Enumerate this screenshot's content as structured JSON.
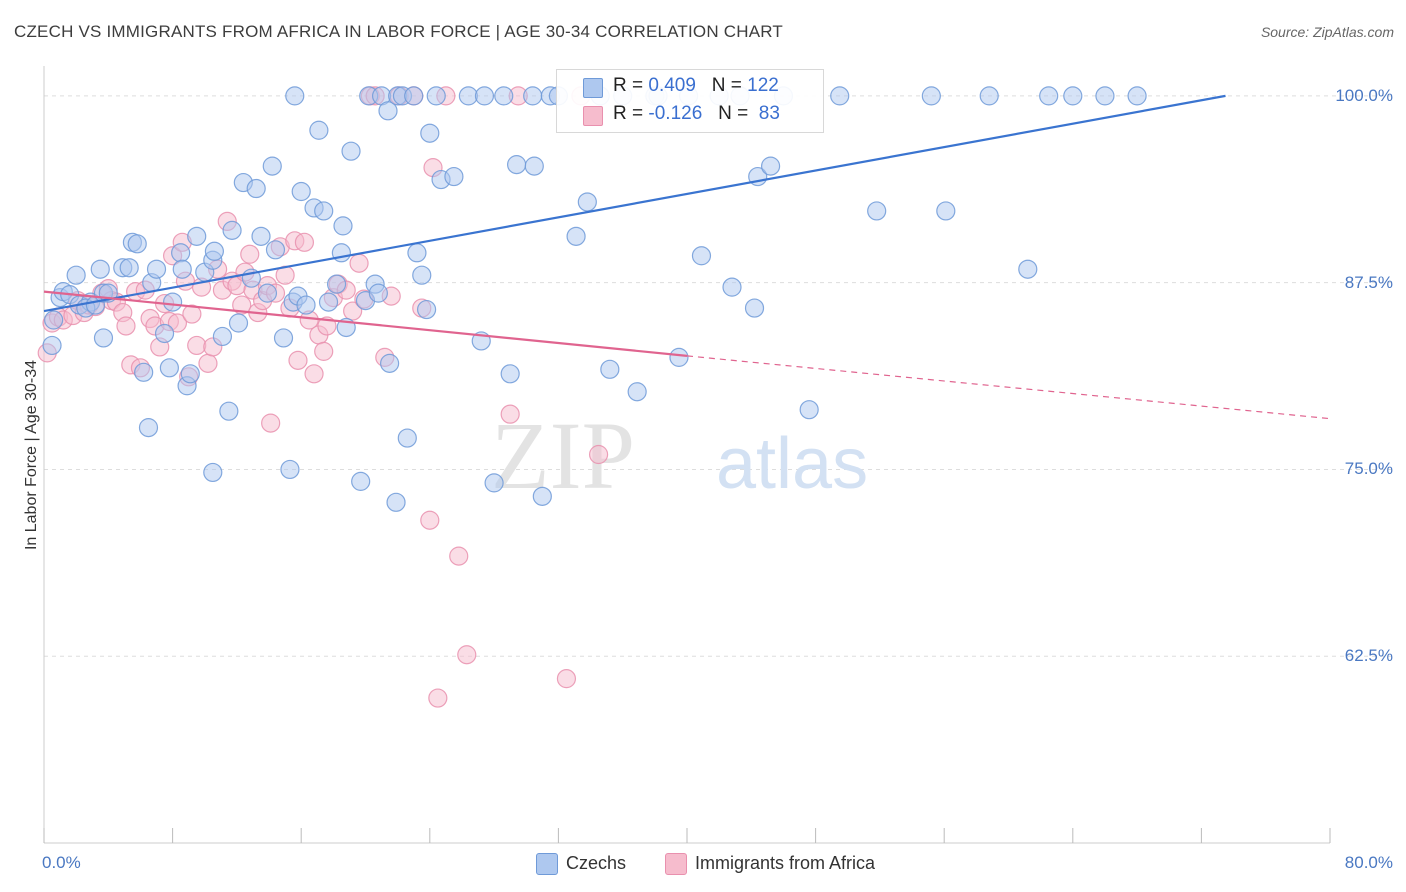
{
  "title": "CZECH VS IMMIGRANTS FROM AFRICA IN LABOR FORCE | AGE 30-34 CORRELATION CHART",
  "source": "Source: ZipAtlas.com",
  "watermark": {
    "zip": "ZIP",
    "atlas": "atlas"
  },
  "colors": {
    "blue": "#3a74d0",
    "blue_fill": "#aec8ef",
    "blue_stroke": "#6f9ad8",
    "pink": "#e0648f",
    "pink_fill": "#f6bccd",
    "pink_stroke": "#e990ae",
    "tick_text": "#4a78c2",
    "grid": "#dddddd"
  },
  "stats": [
    {
      "r_label": "R =",
      "r_value": "0.409",
      "n_label": "N =",
      "n_value": "122"
    },
    {
      "r_label": "R =",
      "r_value": "-0.126",
      "n_label": "N =",
      "n_value": "83"
    }
  ],
  "legend": [
    {
      "label": "Czechs"
    },
    {
      "label": "Immigrants from Africa"
    }
  ],
  "chart_data": {
    "type": "scatter",
    "title": "CZECH VS IMMIGRANTS FROM AFRICA IN LABOR FORCE | AGE 30-34 CORRELATION CHART",
    "xlabel": "",
    "ylabel": "In Labor Force | Age 30-34",
    "xlim": [
      0,
      80
    ],
    "ylim": [
      50,
      102
    ],
    "x_tick_labels": [
      "0.0%",
      "80.0%"
    ],
    "y_ticks": [
      62.5,
      75.0,
      87.5,
      100.0
    ],
    "y_tick_labels": [
      "62.5%",
      "75.0%",
      "87.5%",
      "100.0%"
    ],
    "grid": true,
    "legend_position": "bottom",
    "series": [
      {
        "name": "Czechs",
        "color": "#3a74d0",
        "r": 0.409,
        "n": 122,
        "trend": {
          "x0": 0.0,
          "y0": 85.6,
          "x1": 73.5,
          "y1": 100.0,
          "dashed_to": null
        },
        "points": [
          [
            0.5,
            83.3
          ],
          [
            0.6,
            85.0
          ],
          [
            1.0,
            86.5
          ],
          [
            1.2,
            86.9
          ],
          [
            1.6,
            86.7
          ],
          [
            2.0,
            88.0
          ],
          [
            2.2,
            86.0
          ],
          [
            2.9,
            86.2
          ],
          [
            2.6,
            85.8
          ],
          [
            3.2,
            86.0
          ],
          [
            3.7,
            83.8
          ],
          [
            3.7,
            86.8
          ],
          [
            4.0,
            86.8
          ],
          [
            3.5,
            88.4
          ],
          [
            4.9,
            88.5
          ],
          [
            5.3,
            88.5
          ],
          [
            5.5,
            90.2
          ],
          [
            5.8,
            90.1
          ],
          [
            6.2,
            81.5
          ],
          [
            6.5,
            77.8
          ],
          [
            6.7,
            87.5
          ],
          [
            7.0,
            88.4
          ],
          [
            7.5,
            84.1
          ],
          [
            7.8,
            81.8
          ],
          [
            8.0,
            86.2
          ],
          [
            8.5,
            89.5
          ],
          [
            8.6,
            88.4
          ],
          [
            8.9,
            80.6
          ],
          [
            9.1,
            81.4
          ],
          [
            9.5,
            90.6
          ],
          [
            10.0,
            88.2
          ],
          [
            10.5,
            74.8
          ],
          [
            10.5,
            89.0
          ],
          [
            10.6,
            89.6
          ],
          [
            11.1,
            83.9
          ],
          [
            11.5,
            78.9
          ],
          [
            11.7,
            91.0
          ],
          [
            12.1,
            84.8
          ],
          [
            12.4,
            94.2
          ],
          [
            12.9,
            87.8
          ],
          [
            13.2,
            93.8
          ],
          [
            13.5,
            90.6
          ],
          [
            13.9,
            86.8
          ],
          [
            14.2,
            95.3
          ],
          [
            14.4,
            89.7
          ],
          [
            14.9,
            83.8
          ],
          [
            15.3,
            75.0
          ],
          [
            15.5,
            86.2
          ],
          [
            15.6,
            100.0
          ],
          [
            15.8,
            86.6
          ],
          [
            16.0,
            93.6
          ],
          [
            16.3,
            86.0
          ],
          [
            16.8,
            92.5
          ],
          [
            17.1,
            97.7
          ],
          [
            17.4,
            92.3
          ],
          [
            17.7,
            86.2
          ],
          [
            18.2,
            87.4
          ],
          [
            18.5,
            89.5
          ],
          [
            18.6,
            91.3
          ],
          [
            18.8,
            84.5
          ],
          [
            19.1,
            96.3
          ],
          [
            19.7,
            74.2
          ],
          [
            20.0,
            86.3
          ],
          [
            20.2,
            100.0
          ],
          [
            20.6,
            87.4
          ],
          [
            20.8,
            86.8
          ],
          [
            21.0,
            100.0
          ],
          [
            21.4,
            99.0
          ],
          [
            21.5,
            82.1
          ],
          [
            21.9,
            72.8
          ],
          [
            22.0,
            100.0
          ],
          [
            22.3,
            100.0
          ],
          [
            22.6,
            77.1
          ],
          [
            23.0,
            100.0
          ],
          [
            23.2,
            89.5
          ],
          [
            23.5,
            88.0
          ],
          [
            23.8,
            85.7
          ],
          [
            24.0,
            97.5
          ],
          [
            24.4,
            100.0
          ],
          [
            24.7,
            94.4
          ],
          [
            25.5,
            94.6
          ],
          [
            26.4,
            100.0
          ],
          [
            27.2,
            83.6
          ],
          [
            27.4,
            100.0
          ],
          [
            28.0,
            74.1
          ],
          [
            28.6,
            100.0
          ],
          [
            29.0,
            81.4
          ],
          [
            29.4,
            95.4
          ],
          [
            30.4,
            100.0
          ],
          [
            30.5,
            95.3
          ],
          [
            31.0,
            73.2
          ],
          [
            31.5,
            100.0
          ],
          [
            32.0,
            100.0
          ],
          [
            33.1,
            90.6
          ],
          [
            33.8,
            92.9
          ],
          [
            34.6,
            100.0
          ],
          [
            35.2,
            81.7
          ],
          [
            36.0,
            100.0
          ],
          [
            36.9,
            80.2
          ],
          [
            38.0,
            100.0
          ],
          [
            38.2,
            100.0
          ],
          [
            39.5,
            82.5
          ],
          [
            40.1,
            100.0
          ],
          [
            40.9,
            89.3
          ],
          [
            42.0,
            100.0
          ],
          [
            42.8,
            87.2
          ],
          [
            43.3,
            100.0
          ],
          [
            44.2,
            85.8
          ],
          [
            44.4,
            94.6
          ],
          [
            45.2,
            95.3
          ],
          [
            46.0,
            100.0
          ],
          [
            47.6,
            79.0
          ],
          [
            49.5,
            100.0
          ],
          [
            51.8,
            92.3
          ],
          [
            55.2,
            100.0
          ],
          [
            56.1,
            92.3
          ],
          [
            58.8,
            100.0
          ],
          [
            61.2,
            88.4
          ],
          [
            62.5,
            100.0
          ],
          [
            64.0,
            100.0
          ],
          [
            66.0,
            100.0
          ],
          [
            68.0,
            100.0
          ]
        ]
      },
      {
        "name": "Immigrants from Africa",
        "color": "#e0648f",
        "r": -0.126,
        "n": 83,
        "trend": {
          "x0": 0.0,
          "y0": 86.9,
          "x1": 40.0,
          "y1": 82.6,
          "dashed_to": {
            "x": 80.0,
            "y": 78.4
          }
        },
        "points": [
          [
            0.2,
            82.8
          ],
          [
            0.5,
            84.8
          ],
          [
            0.9,
            85.2
          ],
          [
            1.2,
            85.0
          ],
          [
            1.8,
            85.3
          ],
          [
            2.1,
            86.3
          ],
          [
            2.5,
            85.5
          ],
          [
            2.8,
            86.0
          ],
          [
            3.2,
            85.9
          ],
          [
            3.6,
            86.8
          ],
          [
            4.0,
            87.1
          ],
          [
            4.2,
            86.3
          ],
          [
            4.5,
            86.2
          ],
          [
            4.9,
            85.5
          ],
          [
            5.1,
            84.6
          ],
          [
            5.4,
            82.0
          ],
          [
            5.7,
            86.9
          ],
          [
            6.0,
            81.8
          ],
          [
            6.3,
            87.0
          ],
          [
            6.6,
            85.1
          ],
          [
            6.9,
            84.6
          ],
          [
            7.2,
            83.2
          ],
          [
            7.5,
            86.1
          ],
          [
            7.8,
            84.9
          ],
          [
            8.0,
            89.3
          ],
          [
            8.3,
            84.8
          ],
          [
            8.6,
            90.2
          ],
          [
            8.8,
            87.6
          ],
          [
            9.0,
            81.2
          ],
          [
            9.2,
            85.4
          ],
          [
            9.5,
            83.3
          ],
          [
            9.8,
            87.2
          ],
          [
            10.2,
            82.1
          ],
          [
            10.5,
            83.2
          ],
          [
            10.8,
            88.4
          ],
          [
            11.1,
            87.0
          ],
          [
            11.4,
            91.6
          ],
          [
            11.7,
            87.6
          ],
          [
            12.0,
            87.3
          ],
          [
            12.3,
            86.0
          ],
          [
            12.5,
            88.2
          ],
          [
            12.8,
            89.4
          ],
          [
            13.0,
            87.0
          ],
          [
            13.3,
            85.5
          ],
          [
            13.6,
            86.3
          ],
          [
            13.9,
            87.3
          ],
          [
            14.1,
            78.1
          ],
          [
            14.4,
            86.8
          ],
          [
            14.7,
            89.9
          ],
          [
            15.0,
            88.0
          ],
          [
            15.3,
            85.8
          ],
          [
            15.6,
            90.3
          ],
          [
            15.8,
            82.3
          ],
          [
            16.2,
            90.2
          ],
          [
            16.5,
            85.0
          ],
          [
            16.8,
            81.4
          ],
          [
            17.1,
            84.0
          ],
          [
            17.4,
            82.9
          ],
          [
            17.6,
            84.6
          ],
          [
            18.0,
            86.5
          ],
          [
            18.3,
            87.4
          ],
          [
            18.8,
            87.0
          ],
          [
            19.2,
            85.6
          ],
          [
            19.6,
            88.8
          ],
          [
            19.9,
            86.4
          ],
          [
            20.3,
            100.0
          ],
          [
            20.6,
            100.0
          ],
          [
            21.2,
            82.5
          ],
          [
            21.6,
            86.6
          ],
          [
            22.1,
            100.0
          ],
          [
            23.0,
            100.0
          ],
          [
            23.5,
            85.8
          ],
          [
            24.0,
            71.6
          ],
          [
            24.2,
            95.2
          ],
          [
            25.0,
            100.0
          ],
          [
            25.8,
            69.2
          ],
          [
            26.3,
            62.6
          ],
          [
            24.5,
            59.7
          ],
          [
            29.5,
            100.0
          ],
          [
            29.0,
            78.7
          ],
          [
            32.5,
            61.0
          ],
          [
            33.4,
            100.0
          ],
          [
            34.5,
            76.0
          ]
        ]
      }
    ]
  }
}
